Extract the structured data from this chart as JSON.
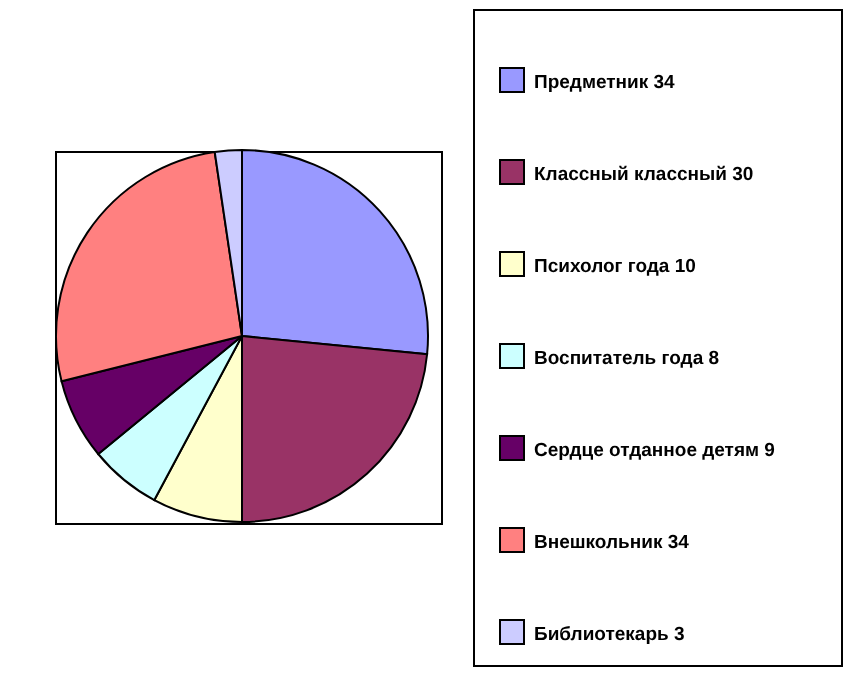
{
  "chart_data": {
    "type": "pie",
    "categories": [
      "Предметник 34",
      "Классный классный 30",
      "Психолог года 10",
      "Воспитатель года 8",
      "Сердце отданное детям 9",
      "Внешкольник 34",
      "Библиотекарь 3"
    ],
    "values": [
      34,
      30,
      10,
      8,
      9,
      34,
      3
    ],
    "colors": [
      "#9999ff",
      "#993366",
      "#ffffcc",
      "#ccffff",
      "#660066",
      "#ff8080",
      "#ccccff"
    ],
    "legend": "right"
  }
}
